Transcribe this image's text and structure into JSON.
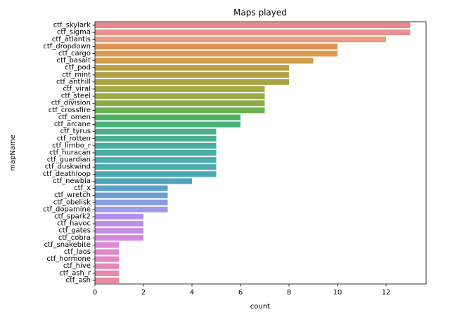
{
  "chart_data": {
    "type": "bar",
    "orientation": "horizontal",
    "title": "Maps played",
    "xlabel": "count",
    "ylabel": "mapName",
    "xlim": [
      0,
      13.65
    ],
    "xticks": [
      0,
      2,
      4,
      6,
      8,
      10,
      12
    ],
    "grid": false,
    "categories": [
      "ctf_skylark",
      "ctf_sigma",
      "ctf_atlantis",
      "ctf_dropdown",
      "ctf_cargo",
      "ctf_basalt",
      "ctf_pod",
      "ctf_mint",
      "ctf_anthill",
      "ctf_viral",
      "ctf_steel",
      "ctf_division",
      "ctf_crossfire",
      "ctf_omen",
      "ctf_arcane",
      "ctf_tyrus",
      "ctf_rotten",
      "ctf_limbo_r",
      "ctf_huracan",
      "ctf_guardian",
      "ctf_duskwind",
      "ctf_deathloop",
      "ctf_newbia",
      "ctf_x",
      "ctf_wretch",
      "ctf_obelisk",
      "ctf_dopamine",
      "ctf_spark2",
      "ctf_havoc",
      "ctf_gates",
      "ctf_cobra",
      "ctf_snakebite",
      "ctf_laos",
      "ctf_hormone",
      "ctf_hive",
      "ctf_ash_r",
      "ctf_ash"
    ],
    "values": [
      13,
      13,
      12,
      10,
      10,
      9,
      8,
      8,
      8,
      7,
      7,
      7,
      7,
      6,
      6,
      5,
      5,
      5,
      5,
      5,
      5,
      5,
      4,
      3,
      3,
      3,
      3,
      2,
      2,
      2,
      2,
      1,
      1,
      1,
      1,
      1,
      1
    ],
    "colors": [
      "#e9888b",
      "#e9938f",
      "#e69f82",
      "#dd9352",
      "#d99a4f",
      "#cf9f4c",
      "#b8a048",
      "#b0a346",
      "#a8a445",
      "#a4a845",
      "#9aab47",
      "#8aad49",
      "#6ab04f",
      "#50b06a",
      "#4db07c",
      "#4caf8c",
      "#4baf96",
      "#4aae9f",
      "#49ada6",
      "#4aabad",
      "#4ba9b2",
      "#4da7b6",
      "#4fa4ba",
      "#59a0c5",
      "#6b9cd2",
      "#8a9ce2",
      "#a09ae9",
      "#b092e6",
      "#be8ee3",
      "#c88be0",
      "#d488de",
      "#dc86da",
      "#e087d0",
      "#e288c5",
      "#e388ba",
      "#e589ad",
      "#e78aa0"
    ]
  }
}
